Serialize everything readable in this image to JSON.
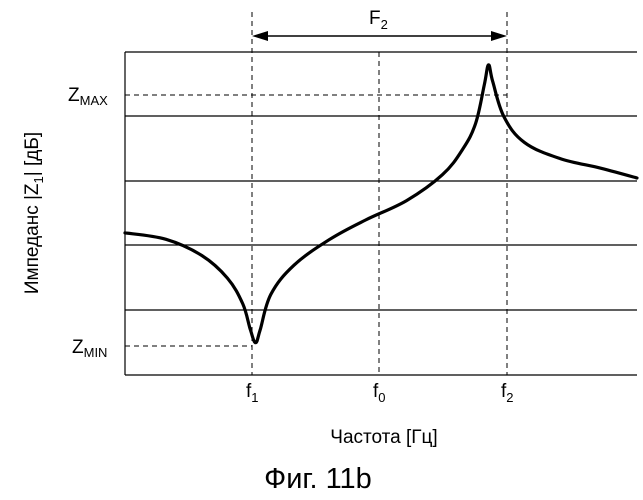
{
  "chart_data": {
    "type": "line",
    "caption": "Фиг. 11b",
    "xlabel": "Частота [Гц]",
    "ylabel_parts": [
      "Импеданс |Z",
      "1",
      "| [дБ]"
    ],
    "x_ticks": [
      {
        "base": "f",
        "sub": "1"
      },
      {
        "base": "f",
        "sub": "0"
      },
      {
        "base": "f",
        "sub": "2"
      }
    ],
    "y_markers": [
      {
        "base": "Z",
        "sub": "MAX"
      },
      {
        "base": "Z",
        "sub": "MIN"
      }
    ],
    "span_annotation": {
      "base": "F",
      "sub": "2",
      "from": "f1",
      "to": "f2"
    },
    "grid": "horizontal lines with dashed vertical markers at f1, f0, f2",
    "series": [
      {
        "points": [
          {
            "x": 0.0,
            "y": 0.44
          },
          {
            "x": 0.08,
            "y": 0.42
          },
          {
            "x": 0.15,
            "y": 0.37
          },
          {
            "x": 0.2,
            "y": 0.3
          },
          {
            "x": 0.23,
            "y": 0.22
          },
          {
            "x": 0.245,
            "y": 0.14
          },
          {
            "x": 0.255,
            "y": 0.1
          },
          {
            "x": 0.264,
            "y": 0.14
          },
          {
            "x": 0.285,
            "y": 0.25
          },
          {
            "x": 0.33,
            "y": 0.34
          },
          {
            "x": 0.4,
            "y": 0.42
          },
          {
            "x": 0.47,
            "y": 0.48
          },
          {
            "x": 0.55,
            "y": 0.54
          },
          {
            "x": 0.62,
            "y": 0.62
          },
          {
            "x": 0.66,
            "y": 0.7
          },
          {
            "x": 0.685,
            "y": 0.78
          },
          {
            "x": 0.702,
            "y": 0.9
          },
          {
            "x": 0.71,
            "y": 0.96
          },
          {
            "x": 0.718,
            "y": 0.91
          },
          {
            "x": 0.74,
            "y": 0.8
          },
          {
            "x": 0.78,
            "y": 0.72
          },
          {
            "x": 0.85,
            "y": 0.67
          },
          {
            "x": 0.93,
            "y": 0.64
          },
          {
            "x": 1.0,
            "y": 0.61
          }
        ]
      }
    ]
  }
}
